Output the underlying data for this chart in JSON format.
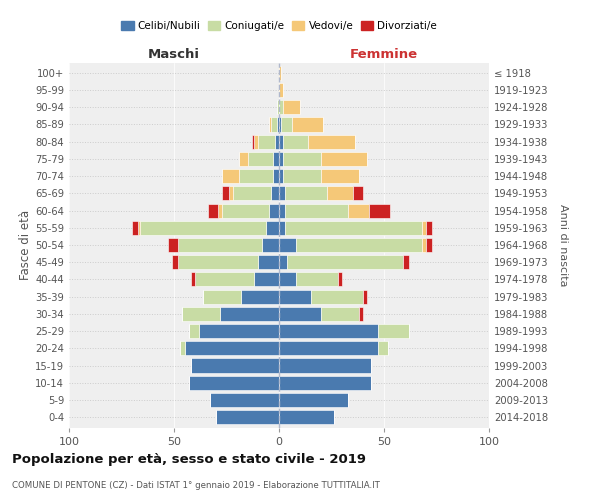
{
  "age_groups": [
    "0-4",
    "5-9",
    "10-14",
    "15-19",
    "20-24",
    "25-29",
    "30-34",
    "35-39",
    "40-44",
    "45-49",
    "50-54",
    "55-59",
    "60-64",
    "65-69",
    "70-74",
    "75-79",
    "80-84",
    "85-89",
    "90-94",
    "95-99",
    "100+"
  ],
  "birth_years": [
    "2014-2018",
    "2009-2013",
    "2004-2008",
    "1999-2003",
    "1994-1998",
    "1989-1993",
    "1984-1988",
    "1979-1983",
    "1974-1978",
    "1969-1973",
    "1964-1968",
    "1959-1963",
    "1954-1958",
    "1949-1953",
    "1944-1948",
    "1939-1943",
    "1934-1938",
    "1929-1933",
    "1924-1928",
    "1919-1923",
    "≤ 1918"
  ],
  "colors": {
    "celibi": "#4a7aaf",
    "coniugati": "#c8dca4",
    "vedovi": "#f5c878",
    "divorziati": "#cc2222"
  },
  "maschi": {
    "celibi": [
      30,
      33,
      43,
      42,
      45,
      38,
      28,
      18,
      12,
      10,
      8,
      6,
      5,
      4,
      3,
      3,
      2,
      1,
      0,
      0,
      0
    ],
    "coniugati": [
      0,
      0,
      0,
      0,
      2,
      5,
      18,
      18,
      28,
      38,
      40,
      60,
      22,
      18,
      16,
      12,
      8,
      3,
      1,
      0,
      0
    ],
    "vedovi": [
      0,
      0,
      0,
      0,
      0,
      0,
      0,
      0,
      0,
      0,
      0,
      1,
      2,
      2,
      8,
      4,
      2,
      1,
      0,
      0,
      0
    ],
    "divorziati": [
      0,
      0,
      0,
      0,
      0,
      0,
      0,
      0,
      2,
      3,
      5,
      3,
      5,
      3,
      0,
      0,
      1,
      0,
      0,
      0,
      0
    ]
  },
  "femmine": {
    "celibi": [
      26,
      33,
      44,
      44,
      47,
      47,
      20,
      15,
      8,
      4,
      8,
      3,
      3,
      3,
      2,
      2,
      2,
      1,
      0,
      0,
      0
    ],
    "coniugati": [
      0,
      0,
      0,
      0,
      5,
      15,
      18,
      25,
      20,
      55,
      60,
      65,
      30,
      20,
      18,
      18,
      12,
      5,
      2,
      0,
      0
    ],
    "vedovi": [
      0,
      0,
      0,
      0,
      0,
      0,
      0,
      0,
      0,
      0,
      2,
      2,
      10,
      12,
      18,
      22,
      22,
      15,
      8,
      2,
      1
    ],
    "divorziati": [
      0,
      0,
      0,
      0,
      0,
      0,
      2,
      2,
      2,
      3,
      3,
      3,
      10,
      5,
      0,
      0,
      0,
      0,
      0,
      0,
      0
    ]
  },
  "xlim": 100,
  "title": "Popolazione per età, sesso e stato civile - 2019",
  "subtitle": "COMUNE DI PENTONE (CZ) - Dati ISTAT 1° gennaio 2019 - Elaborazione TUTTITALIA.IT",
  "ylabel_left": "Fasce di età",
  "ylabel_right": "Anni di nascita",
  "xlabel_left": "Maschi",
  "xlabel_right": "Femmine",
  "bg_color": "#efefef",
  "legend_labels": [
    "Celibi/Nubili",
    "Coniugati/e",
    "Vedovi/e",
    "Divorziati/e"
  ]
}
